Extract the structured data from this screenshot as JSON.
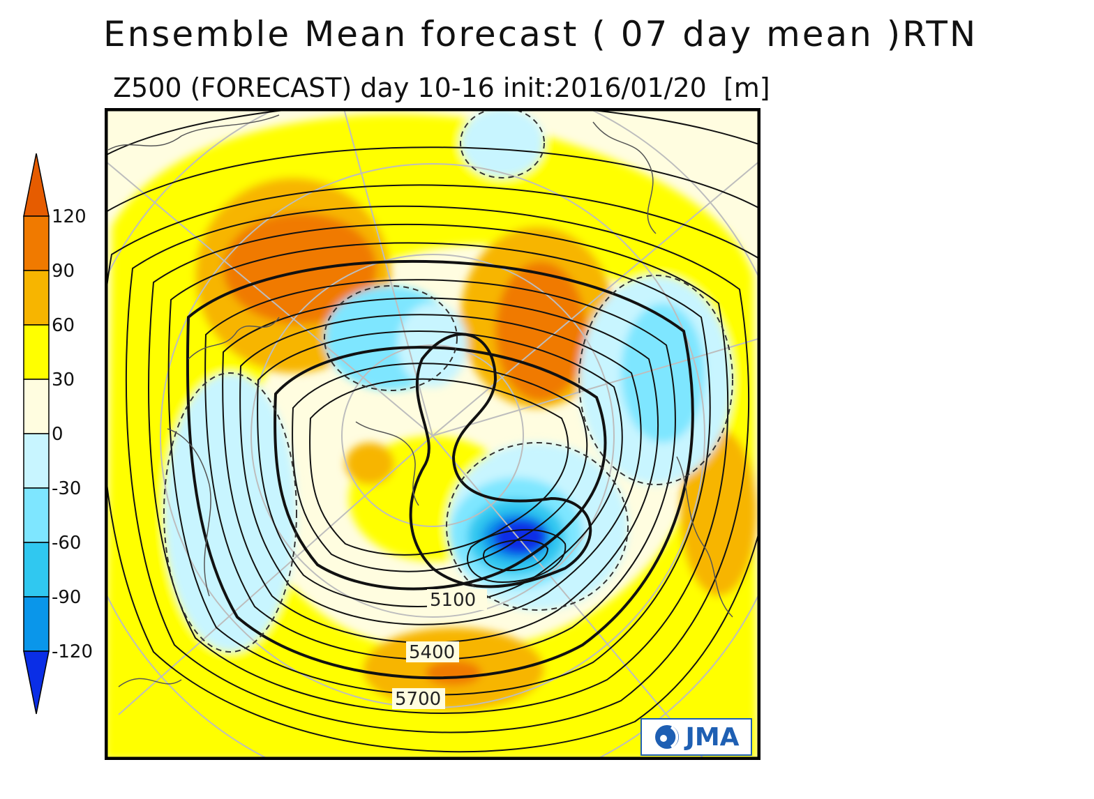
{
  "title": "Ensemble Mean forecast ( 07 day mean )RTN",
  "subtitle": "Z500 (FORECAST) day 10-16 init:2016/01/20  [m]",
  "colorbar": {
    "ticks": [
      "120",
      "90",
      "60",
      "30",
      "0",
      "-30",
      "-60",
      "-90",
      "-120"
    ],
    "colors": [
      "#e65c00",
      "#f07a00",
      "#f7b500",
      "#ffff00",
      "#fffde0",
      "#c8f5ff",
      "#7ee6ff",
      "#30c8f0",
      "#0a96ea",
      "#0a2ee6"
    ]
  },
  "contour_labels": [
    "5100",
    "5400",
    "5700"
  ],
  "logo": {
    "text": "JMA",
    "icon": "jma-logo-icon"
  },
  "map": {
    "projection": "polar stereographic (Northern Hemisphere)",
    "field": "Z500 anomaly",
    "units": "m"
  }
}
